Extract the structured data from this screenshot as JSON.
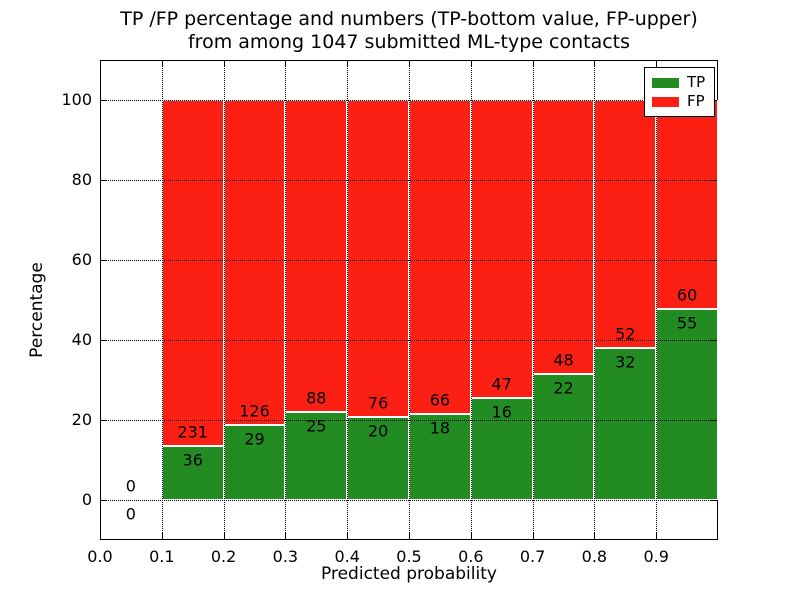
{
  "title": {
    "line1": "TP /FP percentage and numbers (TP-bottom value, FP-upper)",
    "line2": "from among 1047 submitted ML-type contacts"
  },
  "chart_data": {
    "type": "bar",
    "stacked": true,
    "normalized_to_percent": true,
    "title": "TP /FP percentage and numbers (TP-bottom value, FP-upper) from among 1047 submitted ML-type contacts",
    "xlabel": "Predicted probability",
    "ylabel": "Percentage",
    "xlim": [
      0.0,
      1.0
    ],
    "ylim": [
      -10,
      110
    ],
    "bin_width": 0.1,
    "categories": [
      "0.0-0.1",
      "0.1-0.2",
      "0.2-0.3",
      "0.3-0.4",
      "0.4-0.5",
      "0.5-0.6",
      "0.6-0.7",
      "0.7-0.8",
      "0.8-0.9",
      "0.9-1.0"
    ],
    "series": [
      {
        "name": "TP",
        "counts": [
          0,
          36,
          29,
          25,
          20,
          18,
          16,
          22,
          32,
          55
        ],
        "color": "#228b22"
      },
      {
        "name": "FP",
        "counts": [
          0,
          231,
          126,
          88,
          76,
          66,
          47,
          48,
          52,
          60
        ],
        "color": "#fb1f14"
      }
    ],
    "tp_percent_of_bin": [
      0,
      13.48,
      18.71,
      22.12,
      20.83,
      21.43,
      25.4,
      31.43,
      38.1,
      47.83
    ],
    "total_contacts": "1047",
    "xtick_values": [
      0.0,
      0.1,
      0.2,
      0.3,
      0.4,
      0.5,
      0.6,
      0.7,
      0.8,
      0.9
    ],
    "xtick_labels": [
      "0.0",
      "0.1",
      "0.2",
      "0.3",
      "0.4",
      "0.5",
      "0.6",
      "0.7",
      "0.8",
      "0.9"
    ],
    "ytick_values": [
      0,
      20,
      40,
      60,
      80,
      100
    ],
    "ytick_labels": [
      "0",
      "20",
      "40",
      "60",
      "80",
      "100"
    ],
    "grid": true,
    "grid_style": "dotted",
    "legend": {
      "position": "upper right",
      "entries": [
        {
          "label": "TP",
          "color": "#228b22"
        },
        {
          "label": "FP",
          "color": "#fb1f14"
        }
      ]
    }
  },
  "colors": {
    "tp": "#228b22",
    "fp": "#fb1f14",
    "bar_edge": "#ffffff",
    "background": "#ffffff",
    "axis": "#000000"
  }
}
